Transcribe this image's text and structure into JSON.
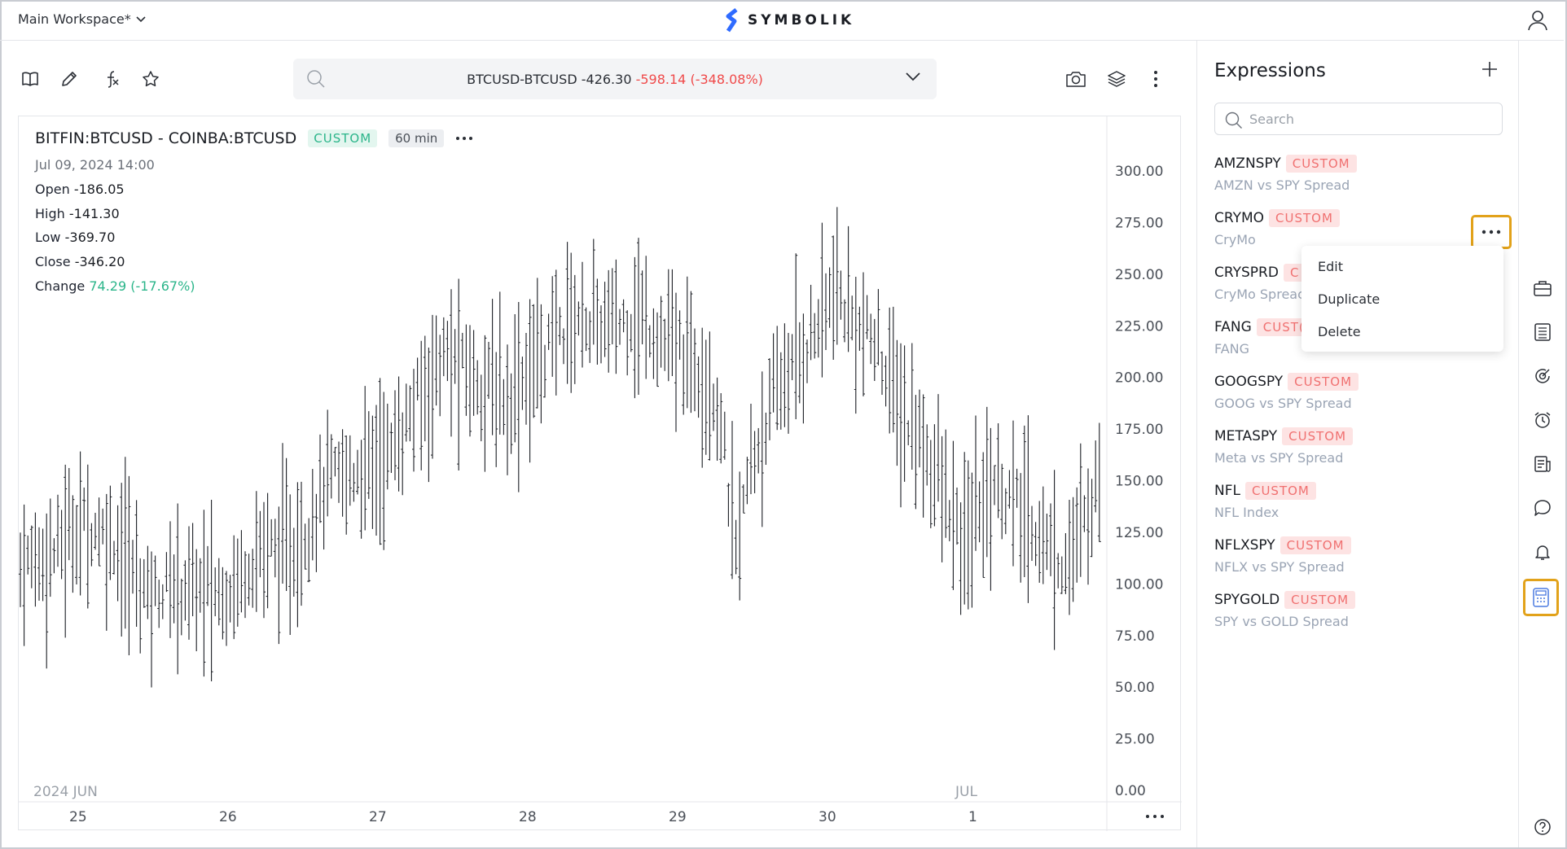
{
  "header": {
    "workspace": "Main Workspace*",
    "brand": "SYMBOLIK"
  },
  "symbol_bar": {
    "symbol": "BTCUSD-BTCUSD",
    "price": "-426.30",
    "change": "-598.14",
    "change_pct": "(-348.08%)"
  },
  "legend": {
    "title": "BITFIN:BTCUSD - COINBA:BTCUSD",
    "badge": "CUSTOM",
    "interval": "60 min",
    "date": "Jul 09, 2024  14:00",
    "open_label": "Open",
    "open": "-186.05",
    "high_label": "High",
    "high": "-141.30",
    "low_label": "Low",
    "low": "-369.70",
    "close_label": "Close",
    "close": "-346.20",
    "change_label": "Change",
    "change": "74.29 (-17.67%)"
  },
  "chart_data": {
    "type": "ohlc",
    "y_ticks": [
      "300.00",
      "275.00",
      "250.00",
      "225.00",
      "200.00",
      "175.00",
      "150.00",
      "125.00",
      "100.00",
      "75.00",
      "50.00",
      "25.00",
      "0.00"
    ],
    "ylim": [
      0,
      300
    ],
    "x_ticks": [
      "25",
      "26",
      "27",
      "28",
      "29",
      "30",
      "1"
    ],
    "period_labels": [
      "2024 JUN",
      "JUL"
    ],
    "grid": false
  },
  "sidebar": {
    "title": "Expressions",
    "search_placeholder": "Search",
    "items": [
      {
        "name": "AMZNSPY",
        "badge": "CUSTOM",
        "desc": "AMZN vs SPY Spread"
      },
      {
        "name": "CRYMO",
        "badge": "CUSTOM",
        "desc": "CryMo"
      },
      {
        "name": "CRYSPRD",
        "badge": "C",
        "desc": "CryMo Spreac"
      },
      {
        "name": "FANG",
        "badge": "CUST(",
        "desc": "FANG"
      },
      {
        "name": "GOOGSPY",
        "badge": "CUSTOM",
        "desc": "GOOG vs SPY Spread"
      },
      {
        "name": "METASPY",
        "badge": "CUSTOM",
        "desc": "Meta vs SPY Spread"
      },
      {
        "name": "NFL",
        "badge": "CUSTOM",
        "desc": "NFL Index"
      },
      {
        "name": "NFLXSPY",
        "badge": "CUSTOM",
        "desc": "NFLX vs SPY Spread"
      },
      {
        "name": "SPYGOLD",
        "badge": "CUSTOM",
        "desc": "SPY vs GOLD Spread"
      }
    ]
  },
  "context_menu": {
    "items": [
      "Edit",
      "Duplicate",
      "Delete"
    ]
  }
}
